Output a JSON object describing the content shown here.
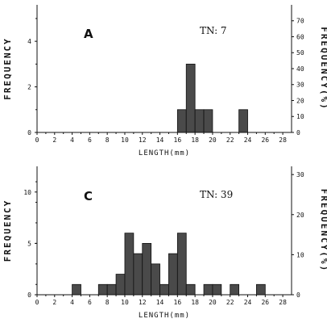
{
  "chart_data": [
    {
      "type": "bar",
      "panel_label": "A",
      "annotation": "TN: 7",
      "xlabel": "LENGTH(mm)",
      "ylabel_left": "FREQUENCY",
      "ylabel_right": "FREQUENCY(%)",
      "xlim": [
        0,
        29
      ],
      "ylim": [
        0,
        5.6
      ],
      "x_ticks": [
        "0",
        "2",
        "4",
        "6",
        "8",
        "10",
        "12",
        "14",
        "16",
        "18",
        "20",
        "22",
        "24",
        "26",
        "28"
      ],
      "y_ticks_left": [
        "0",
        "2",
        "4"
      ],
      "y_ticks_right": [
        "0",
        "10",
        "20",
        "30",
        "40",
        "50",
        "60",
        "70"
      ],
      "y_right_per_count": 14.2857,
      "bin_width": 1,
      "bins": [
        {
          "x": 16,
          "count": 1
        },
        {
          "x": 17,
          "count": 3
        },
        {
          "x": 18,
          "count": 1
        },
        {
          "x": 19,
          "count": 1
        },
        {
          "x": 23,
          "count": 1
        }
      ]
    },
    {
      "type": "bar",
      "panel_label": "C",
      "annotation": "TN: 39",
      "xlabel": "LENGTH(mm)",
      "ylabel_left": "FREQUENCY",
      "ylabel_right": "FREQUENCY(%)",
      "xlim": [
        0,
        29
      ],
      "ylim": [
        0,
        12.5
      ],
      "x_ticks": [
        "0",
        "2",
        "4",
        "6",
        "8",
        "10",
        "12",
        "14",
        "16",
        "18",
        "20",
        "22",
        "24",
        "26",
        "28"
      ],
      "y_ticks_left": [
        "0",
        "5",
        "10"
      ],
      "y_ticks_right": [
        "0",
        "10",
        "20",
        "30"
      ],
      "y_right_per_count": 2.5641,
      "bin_width": 1,
      "bins": [
        {
          "x": 4,
          "count": 1
        },
        {
          "x": 7,
          "count": 1
        },
        {
          "x": 8,
          "count": 1
        },
        {
          "x": 9,
          "count": 2
        },
        {
          "x": 10,
          "count": 6
        },
        {
          "x": 11,
          "count": 4
        },
        {
          "x": 12,
          "count": 5
        },
        {
          "x": 13,
          "count": 3
        },
        {
          "x": 14,
          "count": 1
        },
        {
          "x": 15,
          "count": 4
        },
        {
          "x": 16,
          "count": 6
        },
        {
          "x": 17,
          "count": 1
        },
        {
          "x": 19,
          "count": 1
        },
        {
          "x": 20,
          "count": 1
        },
        {
          "x": 22,
          "count": 1
        },
        {
          "x": 25,
          "count": 1
        }
      ]
    }
  ]
}
